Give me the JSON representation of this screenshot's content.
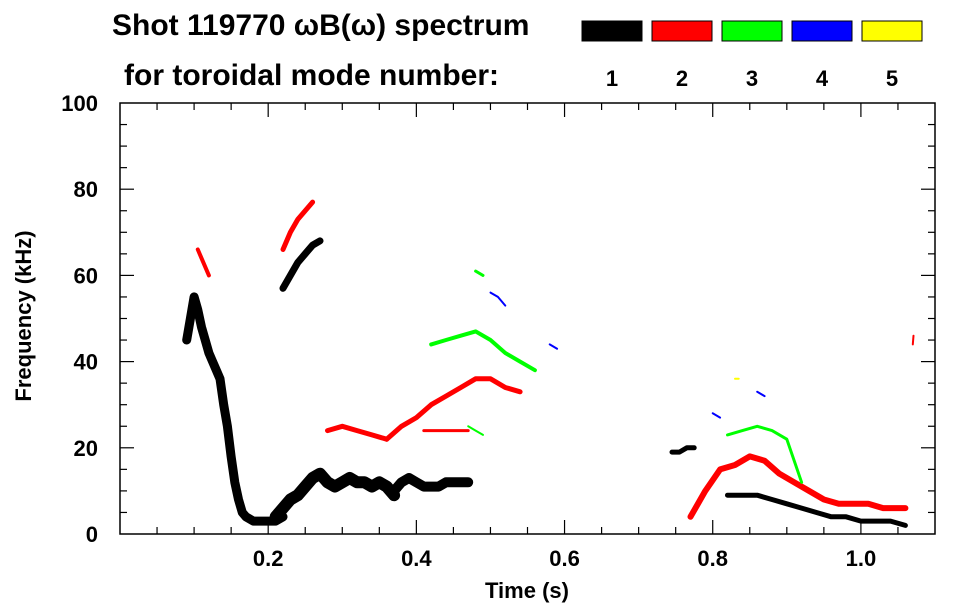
{
  "chart_data": {
    "type": "scatter",
    "title_line1": "Shot 119770 ωB(ω) spectrum",
    "title_line2": "for toroidal mode number:",
    "xlabel": "Time (s)",
    "ylabel": "Frequency (kHz)",
    "xlim": [
      0.0,
      1.1
    ],
    "ylim": [
      0,
      100
    ],
    "x_ticks": [
      0.2,
      0.4,
      0.6,
      0.8,
      1.0
    ],
    "x_tick_labels": [
      "0.2",
      "0.4",
      "0.6",
      "0.8",
      "1.0"
    ],
    "y_ticks": [
      0,
      20,
      40,
      60,
      80,
      100
    ],
    "y_tick_labels": [
      "0",
      "20",
      "40",
      "60",
      "80",
      "100"
    ],
    "grid": false,
    "legend_position": "top-right",
    "series": [
      {
        "name": "1",
        "color": "#000000",
        "segments": [
          {
            "x": [
              0.09,
              0.095,
              0.1,
              0.105,
              0.11,
              0.115,
              0.12,
              0.125,
              0.13,
              0.135,
              0.14,
              0.145,
              0.15,
              0.155,
              0.16,
              0.165,
              0.17,
              0.18,
              0.19,
              0.2,
              0.21,
              0.22
            ],
            "y": [
              45,
              50,
              55,
              52,
              48,
              45,
              42,
              40,
              38,
              36,
              30,
              25,
              18,
              12,
              8,
              5,
              4,
              3,
              3,
              3,
              3,
              4
            ],
            "width": 9
          },
          {
            "x": [
              0.21,
              0.22,
              0.23,
              0.24,
              0.25,
              0.26,
              0.27,
              0.28,
              0.29,
              0.3,
              0.31,
              0.32,
              0.33,
              0.34,
              0.35,
              0.36,
              0.37
            ],
            "y": [
              4,
              6,
              8,
              9,
              11,
              13,
              14,
              12,
              11,
              12,
              13,
              12,
              12,
              11,
              12,
              11,
              9
            ],
            "width": 12
          },
          {
            "x": [
              0.37,
              0.38,
              0.39,
              0.4,
              0.41,
              0.42,
              0.43,
              0.44,
              0.45,
              0.46,
              0.47
            ],
            "y": [
              10,
              12,
              13,
              12,
              11,
              11,
              11,
              12,
              12,
              12,
              12
            ],
            "width": 10
          },
          {
            "x": [
              0.22,
              0.23,
              0.24,
              0.25,
              0.26,
              0.27
            ],
            "y": [
              57,
              60,
              63,
              65,
              67,
              68
            ],
            "width": 7
          },
          {
            "x": [
              0.745,
              0.755,
              0.765,
              0.775
            ],
            "y": [
              19,
              19,
              20,
              20
            ],
            "width": 5
          },
          {
            "x": [
              0.82,
              0.84,
              0.86,
              0.88,
              0.9,
              0.92,
              0.94,
              0.96,
              0.98,
              1.0,
              1.02,
              1.04,
              1.06
            ],
            "y": [
              9,
              9,
              9,
              8,
              7,
              6,
              5,
              4,
              4,
              3,
              3,
              3,
              2
            ],
            "width": 5
          }
        ]
      },
      {
        "name": "2",
        "color": "#ff0000",
        "segments": [
          {
            "x": [
              0.105,
              0.11,
              0.115,
              0.12
            ],
            "y": [
              66,
              64,
              62,
              60
            ],
            "width": 4
          },
          {
            "x": [
              0.22,
              0.23,
              0.24,
              0.25,
              0.26
            ],
            "y": [
              66,
              70,
              73,
              75,
              77
            ],
            "width": 5
          },
          {
            "x": [
              0.28,
              0.3,
              0.32,
              0.34,
              0.36
            ],
            "y": [
              24,
              25,
              24,
              23,
              22
            ],
            "width": 5
          },
          {
            "x": [
              0.36,
              0.38,
              0.4,
              0.42,
              0.44,
              0.46,
              0.48,
              0.5,
              0.52,
              0.54
            ],
            "y": [
              22,
              25,
              27,
              30,
              32,
              34,
              36,
              36,
              34,
              33
            ],
            "width": 5
          },
          {
            "x": [
              0.41,
              0.43,
              0.45,
              0.47
            ],
            "y": [
              24,
              24,
              24,
              24
            ],
            "width": 3
          },
          {
            "x": [
              0.77,
              0.79,
              0.81,
              0.83,
              0.85,
              0.87,
              0.89,
              0.91,
              0.93,
              0.95,
              0.97,
              0.99,
              1.01,
              1.03,
              1.05,
              1.06
            ],
            "y": [
              4,
              10,
              15,
              16,
              18,
              17,
              14,
              12,
              10,
              8,
              7,
              7,
              7,
              6,
              6,
              6
            ],
            "width": 6
          },
          {
            "x": [
              1.07,
              1.071
            ],
            "y": [
              44,
              46
            ],
            "width": 2
          }
        ]
      },
      {
        "name": "3",
        "color": "#00ff00",
        "segments": [
          {
            "x": [
              0.42,
              0.44,
              0.46,
              0.48,
              0.5,
              0.52,
              0.54,
              0.56
            ],
            "y": [
              44,
              45,
              46,
              47,
              45,
              42,
              40,
              38
            ],
            "width": 4
          },
          {
            "x": [
              0.48,
              0.49
            ],
            "y": [
              61,
              60
            ],
            "width": 3
          },
          {
            "x": [
              0.47,
              0.48,
              0.49
            ],
            "y": [
              25,
              24,
              23
            ],
            "width": 2
          },
          {
            "x": [
              0.82,
              0.84,
              0.86,
              0.88,
              0.9,
              0.92
            ],
            "y": [
              23,
              24,
              25,
              24,
              22,
              12
            ],
            "width": 3
          }
        ]
      },
      {
        "name": "4",
        "color": "#0000ff",
        "segments": [
          {
            "x": [
              0.5,
              0.51,
              0.52
            ],
            "y": [
              56,
              55,
              53
            ],
            "width": 2
          },
          {
            "x": [
              0.58,
              0.59
            ],
            "y": [
              44,
              43
            ],
            "width": 2
          },
          {
            "x": [
              0.8,
              0.81
            ],
            "y": [
              28,
              27
            ],
            "width": 2
          },
          {
            "x": [
              0.86,
              0.87
            ],
            "y": [
              33,
              32
            ],
            "width": 2
          }
        ]
      },
      {
        "name": "5",
        "color": "#ffff00",
        "segments": [
          {
            "x": [
              0.83,
              0.835
            ],
            "y": [
              36,
              36
            ],
            "width": 2
          }
        ]
      }
    ]
  }
}
